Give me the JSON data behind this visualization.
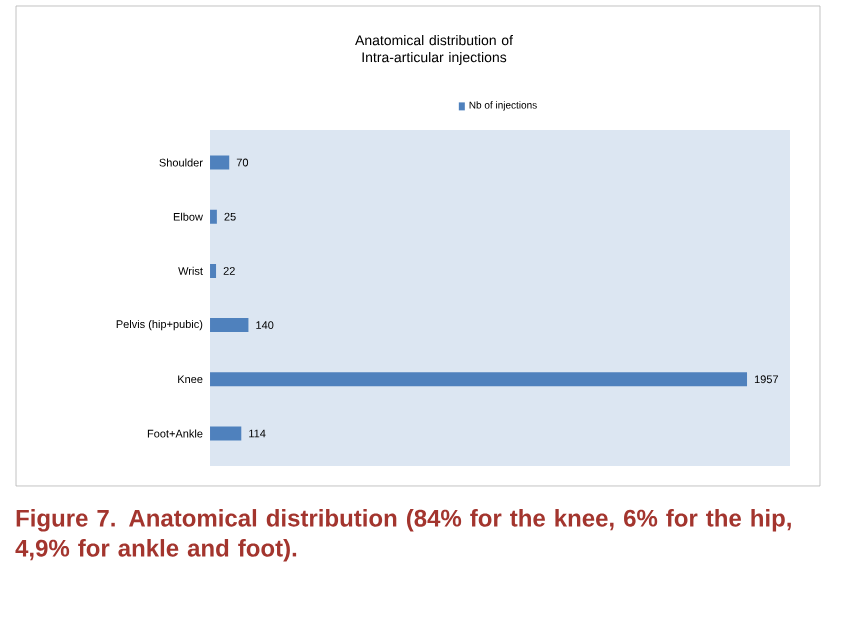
{
  "chart_data": {
    "type": "bar",
    "orientation": "horizontal",
    "title": "Anatomical distribution of Intra-articular injections",
    "categories": [
      "Shoulder",
      "Elbow",
      "Wrist",
      "Pelvis (hip+pubic)",
      "Knee",
      "Foot+Ankle"
    ],
    "series": [
      {
        "name": "Nb of injections",
        "color": "#4f81bd",
        "values": [
          70,
          25,
          22,
          140,
          1957,
          114
        ]
      }
    ],
    "data_labels": true,
    "legend": "top",
    "annotations": [
      "Figure 7. Anatomical distribution (84% for the knee, 6% for the hip, 4,9% for ankle and foot)."
    ]
  }
}
